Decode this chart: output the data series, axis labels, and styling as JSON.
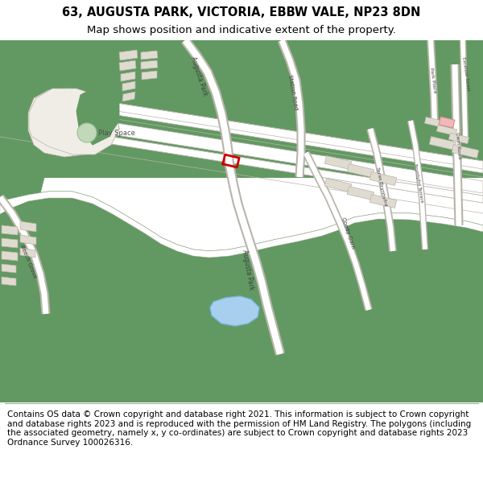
{
  "title_line1": "63, AUGUSTA PARK, VICTORIA, EBBW VALE, NP23 8DN",
  "title_line2": "Map shows position and indicative extent of the property.",
  "footer_text": "Contains OS data © Crown copyright and database right 2021. This information is subject to Crown copyright and database rights 2023 and is reproduced with the permission of HM Land Registry. The polygons (including the associated geometry, namely x, y co-ordinates) are subject to Crown copyright and database rights 2023 Ordnance Survey 100026316.",
  "bg_color": "#ffffff",
  "map_bg": "#f0ede6",
  "green_color": "#629962",
  "light_green": "#c2d9b8",
  "building_color": "#e0dbd0",
  "building_outline": "#b8b4aa",
  "road_color": "#ffffff",
  "road_outline": "#b8b4aa",
  "plot_color": "#cc0000",
  "water_color": "#a8d0ee",
  "pink_color": "#f0b8b8",
  "figure_width": 6.0,
  "figure_height": 6.25,
  "dpi": 100,
  "title_fontsize": 10.5,
  "subtitle_fontsize": 9.5,
  "footer_fontsize": 7.5
}
